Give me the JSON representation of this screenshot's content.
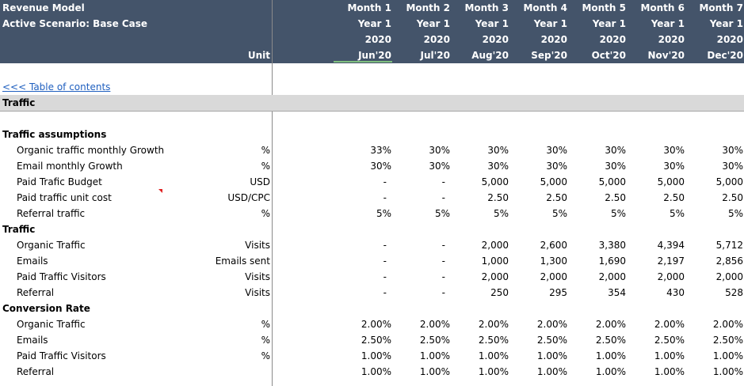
{
  "header": {
    "title": "Revenue Model",
    "scenario": "Active Scenario: Base Case",
    "unit_label": "Unit",
    "months": [
      {
        "name": "Month 1",
        "year": "Year 1",
        "cal": "2020",
        "date": "Jun'20"
      },
      {
        "name": "Month 2",
        "year": "Year 1",
        "cal": "2020",
        "date": "Jul'20"
      },
      {
        "name": "Month 3",
        "year": "Year 1",
        "cal": "2020",
        "date": "Aug'20"
      },
      {
        "name": "Month 4",
        "year": "Year 1",
        "cal": "2020",
        "date": "Sep'20"
      },
      {
        "name": "Month 5",
        "year": "Year 1",
        "cal": "2020",
        "date": "Oct'20"
      },
      {
        "name": "Month 6",
        "year": "Year 1",
        "cal": "2020",
        "date": "Nov'20"
      },
      {
        "name": "Month 7",
        "year": "Year 1",
        "cal": "2020",
        "date": "Dec'20"
      }
    ]
  },
  "toc_link": "<<< Table of contents",
  "section_title": "Traffic",
  "rows": [
    {
      "type": "group",
      "label": "Traffic assumptions"
    },
    {
      "type": "data",
      "label": "Organic traffic monthly Growth",
      "unit": "%",
      "values": [
        "33%",
        "30%",
        "30%",
        "30%",
        "30%",
        "30%",
        "30%"
      ]
    },
    {
      "type": "data",
      "label": "Email monthly Growth",
      "unit": "%",
      "values": [
        "30%",
        "30%",
        "30%",
        "30%",
        "30%",
        "30%",
        "30%"
      ]
    },
    {
      "type": "data",
      "label": "Paid Trafic Budget",
      "unit": "USD",
      "values": [
        "-",
        "-",
        "5,000",
        "5,000",
        "5,000",
        "5,000",
        "5,000"
      ]
    },
    {
      "type": "data",
      "label": "Paid traffic unit cost",
      "unit": "USD/CPC",
      "values": [
        "-",
        "-",
        "2.50",
        "2.50",
        "2.50",
        "2.50",
        "2.50"
      ]
    },
    {
      "type": "data",
      "label": "Referral traffic",
      "unit": "%",
      "values": [
        "5%",
        "5%",
        "5%",
        "5%",
        "5%",
        "5%",
        "5%"
      ]
    },
    {
      "type": "group",
      "label": "Traffic"
    },
    {
      "type": "data",
      "label": "Organic Traffic",
      "unit": "Visits",
      "values": [
        "-",
        "-",
        "2,000",
        "2,600",
        "3,380",
        "4,394",
        "5,712"
      ]
    },
    {
      "type": "data",
      "label": "Emails",
      "unit": "Emails sent",
      "values": [
        "-",
        "-",
        "1,000",
        "1,300",
        "1,690",
        "2,197",
        "2,856"
      ]
    },
    {
      "type": "data",
      "label": "Paid Traffic Visitors",
      "unit": "Visits",
      "values": [
        "-",
        "-",
        "2,000",
        "2,000",
        "2,000",
        "2,000",
        "2,000"
      ]
    },
    {
      "type": "data",
      "label": "Referral",
      "unit": "Visits",
      "values": [
        "-",
        "-",
        "250",
        "295",
        "354",
        "430",
        "528"
      ]
    },
    {
      "type": "group",
      "label": "Conversion Rate"
    },
    {
      "type": "data",
      "label": "Organic Traffic",
      "unit": "%",
      "values": [
        "2.00%",
        "2.00%",
        "2.00%",
        "2.00%",
        "2.00%",
        "2.00%",
        "2.00%"
      ]
    },
    {
      "type": "data",
      "label": "Emails",
      "unit": "%",
      "values": [
        "2.50%",
        "2.50%",
        "2.50%",
        "2.50%",
        "2.50%",
        "2.50%",
        "2.50%"
      ]
    },
    {
      "type": "data",
      "label": "Paid Traffic Visitors",
      "unit": "%",
      "values": [
        "1.00%",
        "1.00%",
        "1.00%",
        "1.00%",
        "1.00%",
        "1.00%",
        "1.00%"
      ]
    },
    {
      "type": "data",
      "label": "Referral",
      "unit": "",
      "values": [
        "1.00%",
        "1.00%",
        "1.00%",
        "1.00%",
        "1.00%",
        "1.00%",
        "1.00%"
      ]
    }
  ],
  "colors": {
    "header_bg": "#44546a",
    "band_bg": "#d9d9d9",
    "link": "#1f5fbf",
    "comment_marker": "#e02020"
  }
}
